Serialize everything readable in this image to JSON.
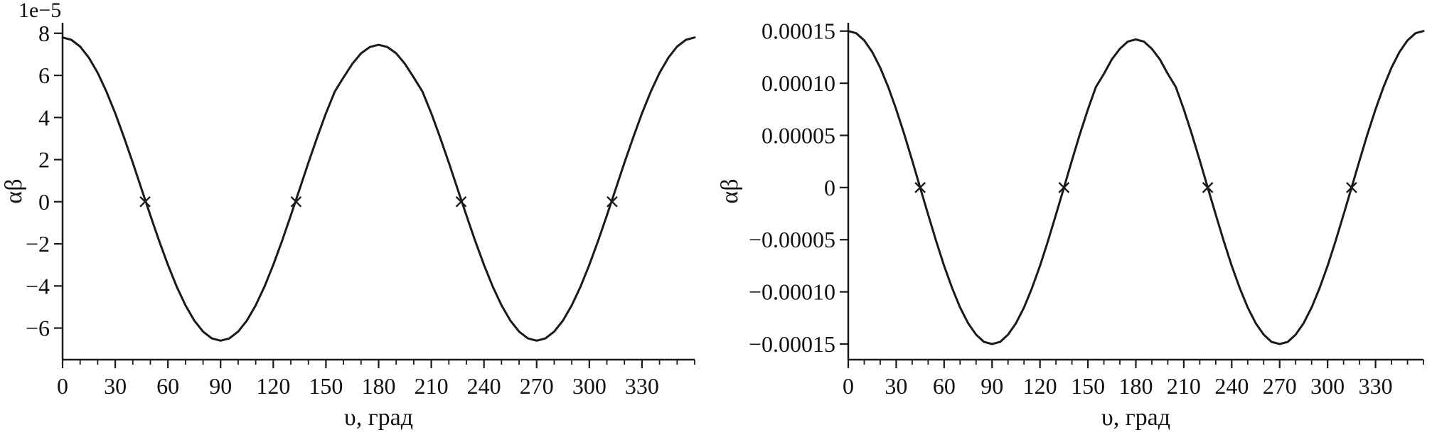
{
  "figure": {
    "description_left": "alpha-beta versus angle, scaled 1e-5",
    "description_right": "alpha-beta versus angle, absolute scale"
  },
  "chart_data": [
    {
      "type": "line",
      "title": "",
      "xlabel": "υ, град",
      "ylabel": "αβ",
      "offset_text": "1e−5",
      "y_unit": "1e-5",
      "xlim": [
        0,
        360
      ],
      "ylim": [
        -7.5,
        8.5
      ],
      "grid": false,
      "legend": null,
      "line_color": "#1a1a1a",
      "x_minor_step": 10,
      "xticks": [
        0,
        30,
        60,
        90,
        120,
        150,
        180,
        210,
        240,
        270,
        300,
        330
      ],
      "xtick_labels": [
        "0",
        "30",
        "60",
        "90",
        "120",
        "150",
        "180",
        "210",
        "240",
        "270",
        "300",
        "330"
      ],
      "yticks": [
        -6,
        -4,
        -2,
        0,
        2,
        4,
        6,
        8
      ],
      "ytick_labels": [
        "−6",
        "−4",
        "−2",
        "0",
        "2",
        "4",
        "6",
        "8"
      ],
      "layout": {
        "margins": {
          "l": 88,
          "r": 30,
          "t": 32,
          "b": 106
        }
      },
      "series": [
        {
          "name": "αβ(υ)",
          "x_start": 0,
          "x_step": 5,
          "y": [
            7.8,
            7.69,
            7.37,
            6.84,
            6.12,
            5.23,
            4.2,
            3.06,
            1.85,
            0.6,
            -0.65,
            -1.86,
            -3.0,
            -4.03,
            -4.92,
            -5.64,
            -6.17,
            -6.49,
            -6.6,
            -6.49,
            -6.17,
            -5.64,
            -4.92,
            -4.03,
            -3.0,
            -1.86,
            -0.65,
            0.6,
            1.85,
            3.06,
            4.2,
            5.23,
            5.9,
            6.55,
            7.05,
            7.35,
            7.45,
            7.35,
            7.05,
            6.55,
            5.9,
            5.23,
            4.2,
            3.06,
            1.85,
            0.6,
            -0.65,
            -1.86,
            -3.0,
            -4.03,
            -4.92,
            -5.64,
            -6.17,
            -6.49,
            -6.6,
            -6.49,
            -6.17,
            -5.64,
            -4.92,
            -4.03,
            -3.0,
            -1.86,
            -0.65,
            0.6,
            1.85,
            3.06,
            4.2,
            5.23,
            6.12,
            6.84,
            7.37,
            7.69,
            7.8
          ]
        }
      ],
      "markers": {
        "symbol": "x",
        "points": [
          [
            47,
            0
          ],
          [
            133,
            0
          ],
          [
            227,
            0
          ],
          [
            313,
            0
          ]
        ]
      }
    },
    {
      "type": "line",
      "title": "",
      "xlabel": "υ, град",
      "ylabel": "αβ",
      "offset_text": "",
      "y_unit": "1",
      "xlim": [
        0,
        360
      ],
      "ylim": [
        -0.000165,
        0.000158
      ],
      "grid": false,
      "legend": null,
      "line_color": "#1a1a1a",
      "x_minor_step": 10,
      "xticks": [
        0,
        30,
        60,
        90,
        120,
        150,
        180,
        210,
        240,
        270,
        300,
        330
      ],
      "xtick_labels": [
        "0",
        "30",
        "60",
        "90",
        "120",
        "150",
        "180",
        "210",
        "240",
        "270",
        "300",
        "330"
      ],
      "yticks": [
        -0.00015,
        -0.0001,
        -5e-05,
        0,
        5e-05,
        0.0001,
        0.00015
      ],
      "ytick_labels": [
        "−0.00015",
        "−0.00010",
        "−0.00005",
        "0",
        "0.00005",
        "0.00010",
        "0.00015"
      ],
      "layout": {
        "margins": {
          "l": 186,
          "r": 12,
          "t": 32,
          "b": 106
        }
      },
      "series": [
        {
          "name": "αβ(υ)",
          "x_start": 0,
          "x_step": 5,
          "y": [
            0.00015,
            0.000148,
            0.000141,
            0.00013,
            0.000115,
            9.64e-05,
            7.5e-05,
            5.13e-05,
            2.6e-05,
            0,
            -2.6e-05,
            -5.13e-05,
            -7.5e-05,
            -9.64e-05,
            -0.000115,
            -0.00013,
            -0.000141,
            -0.000148,
            -0.00015,
            -0.000148,
            -0.000141,
            -0.00013,
            -0.000115,
            -9.64e-05,
            -7.5e-05,
            -5.13e-05,
            -2.6e-05,
            0,
            2.6e-05,
            5.13e-05,
            7.5e-05,
            9.64e-05,
            0.000109,
            0.000123,
            0.000133,
            0.00014,
            0.000142,
            0.00014,
            0.000133,
            0.000123,
            0.000109,
            9.64e-05,
            7.5e-05,
            5.13e-05,
            2.6e-05,
            0,
            -2.6e-05,
            -5.13e-05,
            -7.5e-05,
            -9.64e-05,
            -0.000115,
            -0.00013,
            -0.000141,
            -0.000148,
            -0.00015,
            -0.000148,
            -0.000141,
            -0.00013,
            -0.000115,
            -9.64e-05,
            -7.5e-05,
            -5.13e-05,
            -2.6e-05,
            0,
            2.6e-05,
            5.13e-05,
            7.5e-05,
            9.64e-05,
            0.000115,
            0.00013,
            0.000141,
            0.000148,
            0.00015
          ]
        }
      ],
      "markers": {
        "symbol": "x",
        "points": [
          [
            45,
            0
          ],
          [
            135,
            0
          ],
          [
            225,
            0
          ],
          [
            315,
            0
          ]
        ]
      }
    }
  ]
}
